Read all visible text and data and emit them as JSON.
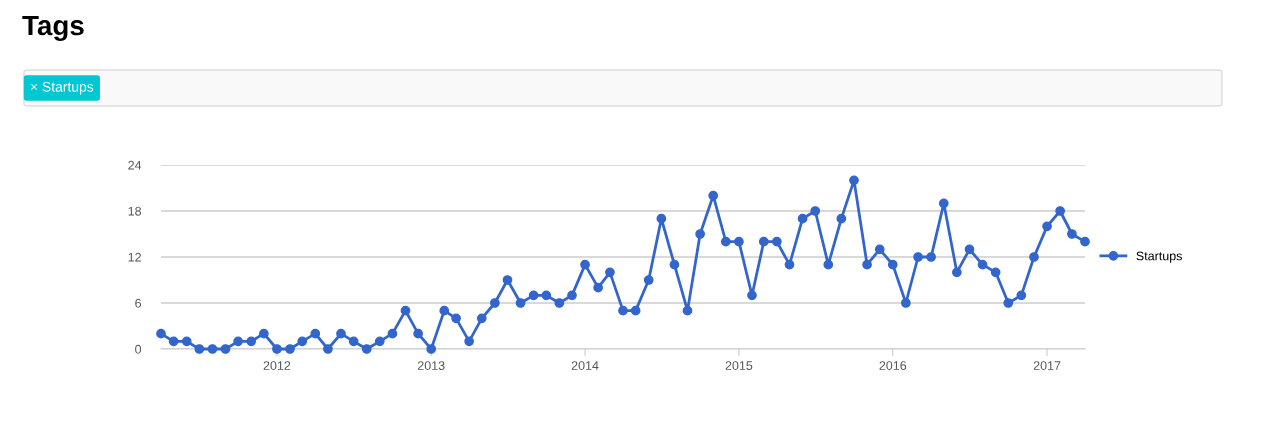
{
  "chart_data": {
    "type": "line",
    "title": "Tags",
    "annotations": [
      "× Startups"
    ],
    "x": [
      "2011-04",
      "2011-05",
      "2011-06",
      "2011-07",
      "2011-08",
      "2011-09",
      "2011-10",
      "2011-11",
      "2011-12",
      "2012-01",
      "2012-02",
      "2012-03",
      "2012-04",
      "2012-05",
      "2012-06",
      "2012-07",
      "2012-08",
      "2012-09",
      "2012-10",
      "2012-11",
      "2012-12",
      "2013-01",
      "2013-02",
      "2013-03",
      "2013-04",
      "2013-05",
      "2013-06",
      "2013-07",
      "2013-08",
      "2013-09",
      "2013-10",
      "2013-11",
      "2013-12",
      "2014-01",
      "2014-02",
      "2014-03",
      "2014-04",
      "2014-05",
      "2014-06",
      "2014-07",
      "2014-08",
      "2014-09",
      "2014-10",
      "2014-11",
      "2014-12",
      "2015-01",
      "2015-02",
      "2015-03",
      "2015-04",
      "2015-05",
      "2015-06",
      "2015-07",
      "2015-08",
      "2015-09",
      "2015-10",
      "2015-11",
      "2015-12",
      "2016-01",
      "2016-02",
      "2016-03",
      "2016-04",
      "2016-05",
      "2016-06",
      "2016-07",
      "2016-08",
      "2016-09",
      "2016-10",
      "2016-11",
      "2016-12",
      "2017-01",
      "2017-02",
      "2017-03",
      "2017-04"
    ],
    "series": [
      {
        "name": "Startups",
        "color": "#3366cc",
        "values": [
          2,
          1,
          1,
          0,
          0,
          0,
          1,
          1,
          2,
          0,
          0,
          1,
          2,
          0,
          2,
          1,
          0,
          1,
          2,
          5,
          2,
          0,
          5,
          4,
          1,
          4,
          6,
          9,
          6,
          7,
          7,
          6,
          7,
          11,
          8,
          10,
          5,
          5,
          9,
          17,
          11,
          5,
          15,
          20,
          14,
          14,
          7,
          14,
          14,
          11,
          17,
          18,
          11,
          17,
          22,
          11,
          13,
          11,
          6,
          12,
          12,
          19,
          10,
          13,
          11,
          10,
          6,
          7,
          12,
          16,
          18,
          15,
          14
        ]
      }
    ],
    "xlim": [
      "2011-04",
      "2017-04"
    ],
    "xticks": [
      {
        "value": "2012-01",
        "label": "2012"
      },
      {
        "value": "2013-01",
        "label": "2013"
      },
      {
        "value": "2014-01",
        "label": "2014"
      },
      {
        "value": "2015-01",
        "label": "2015"
      },
      {
        "value": "2016-01",
        "label": "2016"
      },
      {
        "value": "2017-01",
        "label": "2017"
      }
    ],
    "ylim": [
      0,
      24
    ],
    "yticks": [
      0,
      6,
      12,
      18,
      24
    ],
    "grid": "y",
    "legend": "right",
    "marker": "circle",
    "line_style": "solid"
  }
}
